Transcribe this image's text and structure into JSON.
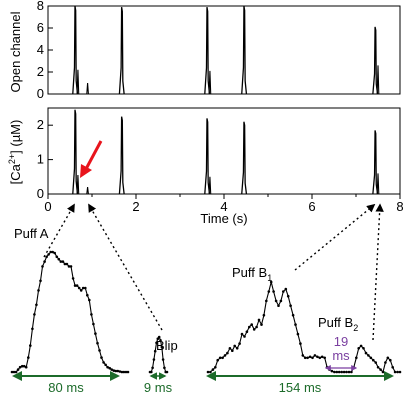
{
  "chart_data": [
    {
      "type": "line",
      "panel": "top",
      "ylabel": "Open channel",
      "xlim": [
        0,
        8
      ],
      "ylim": [
        0,
        8
      ],
      "yticks": [
        "0",
        "2",
        "4",
        "6",
        "8"
      ],
      "events": [
        {
          "t": 0.62,
          "peak": 8.0,
          "trail": [
            {
              "dt": 0.06,
              "v": 2.2
            },
            {
              "dt": 0.28,
              "v": 1.0
            }
          ]
        },
        {
          "t": 1.68,
          "peak": 7.9
        },
        {
          "t": 3.62,
          "peak": 7.9,
          "trail": [
            {
              "dt": 0.06,
              "v": 2.1
            }
          ]
        },
        {
          "t": 4.46,
          "peak": 8.0
        },
        {
          "t": 7.44,
          "peak": 6.1,
          "trail": [
            {
              "dt": 0.06,
              "v": 2.6
            }
          ]
        }
      ]
    },
    {
      "type": "line",
      "panel": "middle",
      "ylabel_main": "[Ca",
      "ylabel_sup": "2+",
      "ylabel_rest": "] (µM)",
      "xlabel": "Time (s)",
      "xlim": [
        0,
        8
      ],
      "ylim": [
        0,
        2.5
      ],
      "yticks": [
        "0",
        "1",
        "2"
      ],
      "xticks": [
        "0",
        "2",
        "4",
        "6",
        "8"
      ],
      "events": [
        {
          "t": 0.62,
          "peak": 2.45,
          "trail": [
            {
              "dt": 0.06,
              "v": 0.55
            },
            {
              "dt": 0.28,
              "v": 0.2
            }
          ]
        },
        {
          "t": 1.68,
          "peak": 2.25
        },
        {
          "t": 3.62,
          "peak": 2.2,
          "trail": [
            {
              "dt": 0.06,
              "v": 0.5
            }
          ]
        },
        {
          "t": 4.46,
          "peak": 2.1
        },
        {
          "t": 7.44,
          "peak": 1.85,
          "trail": [
            {
              "dt": 0.06,
              "v": 0.6
            }
          ]
        }
      ]
    }
  ],
  "zoom_traces": {
    "puff_a": {
      "label": "Puff A",
      "y": [
        0,
        0,
        0,
        0.05,
        0.1,
        0.12,
        0.12,
        0.1,
        0.3,
        0.55,
        0.9,
        1.2,
        1.4,
        1.7,
        1.9,
        2.2,
        2.3,
        2.4,
        2.45,
        2.5,
        2.5,
        2.48,
        2.4,
        2.35,
        2.3,
        2.3,
        2.25,
        2.25,
        2.2,
        2.2,
        1.95,
        1.8,
        1.8,
        1.75,
        1.7,
        1.75,
        1.75,
        1.6,
        1.5,
        1.2,
        1.0,
        0.8,
        0.6,
        0.45,
        0.3,
        0.2,
        0.15,
        0.1,
        0.08,
        0.05,
        0.03,
        0.02,
        0.02,
        0.01,
        0,
        0,
        0,
        0
      ]
    },
    "blip": {
      "label": "Blip",
      "y": [
        0,
        0,
        0.05,
        0.15,
        0.25,
        0.35,
        0.4,
        0.42,
        0.38,
        0.3,
        0.15,
        0.05,
        0,
        0
      ]
    },
    "puff_b": {
      "label_b1_main": "Puff B",
      "label_b1_sub": "1",
      "label_b2_main": "Puff B",
      "label_b2_sub": "2",
      "y": [
        0,
        0,
        0.05,
        0.1,
        0.25,
        0.3,
        0.3,
        0.35,
        0.4,
        0.5,
        0.45,
        0.55,
        0.5,
        0.6,
        0.8,
        0.75,
        0.85,
        0.95,
        1.0,
        0.9,
        0.95,
        1.1,
        1.0,
        1.2,
        1.5,
        1.7,
        1.9,
        1.7,
        1.5,
        1.4,
        1.5,
        1.7,
        1.75,
        1.6,
        1.4,
        1.2,
        1.0,
        0.8,
        0.6,
        0.35,
        0.3,
        0.3,
        0.32,
        0.3,
        0.35,
        0.32,
        0.3,
        0.32,
        0.3,
        0.1,
        0.05,
        0.02,
        0,
        0,
        0,
        0,
        0,
        0,
        0,
        0,
        0.1,
        0.3,
        0.5,
        0.55,
        0.5,
        0.4,
        0.35,
        0.3,
        0.25,
        0.2,
        0.1,
        0.05,
        0,
        0.2,
        0.3,
        0.25,
        0.1,
        0,
        0,
        0
      ]
    }
  },
  "annotations": {
    "puff_a_duration": "80 ms",
    "blip_duration": "9 ms",
    "puff_b_duration": "154 ms",
    "gap_line1": "19",
    "gap_line2": "ms"
  },
  "colors": {
    "trace": "#000000",
    "duration_arrow": "#1c6b2a",
    "gap_text": "#7a3fa0",
    "pointer_arrow": "#e8141c"
  }
}
